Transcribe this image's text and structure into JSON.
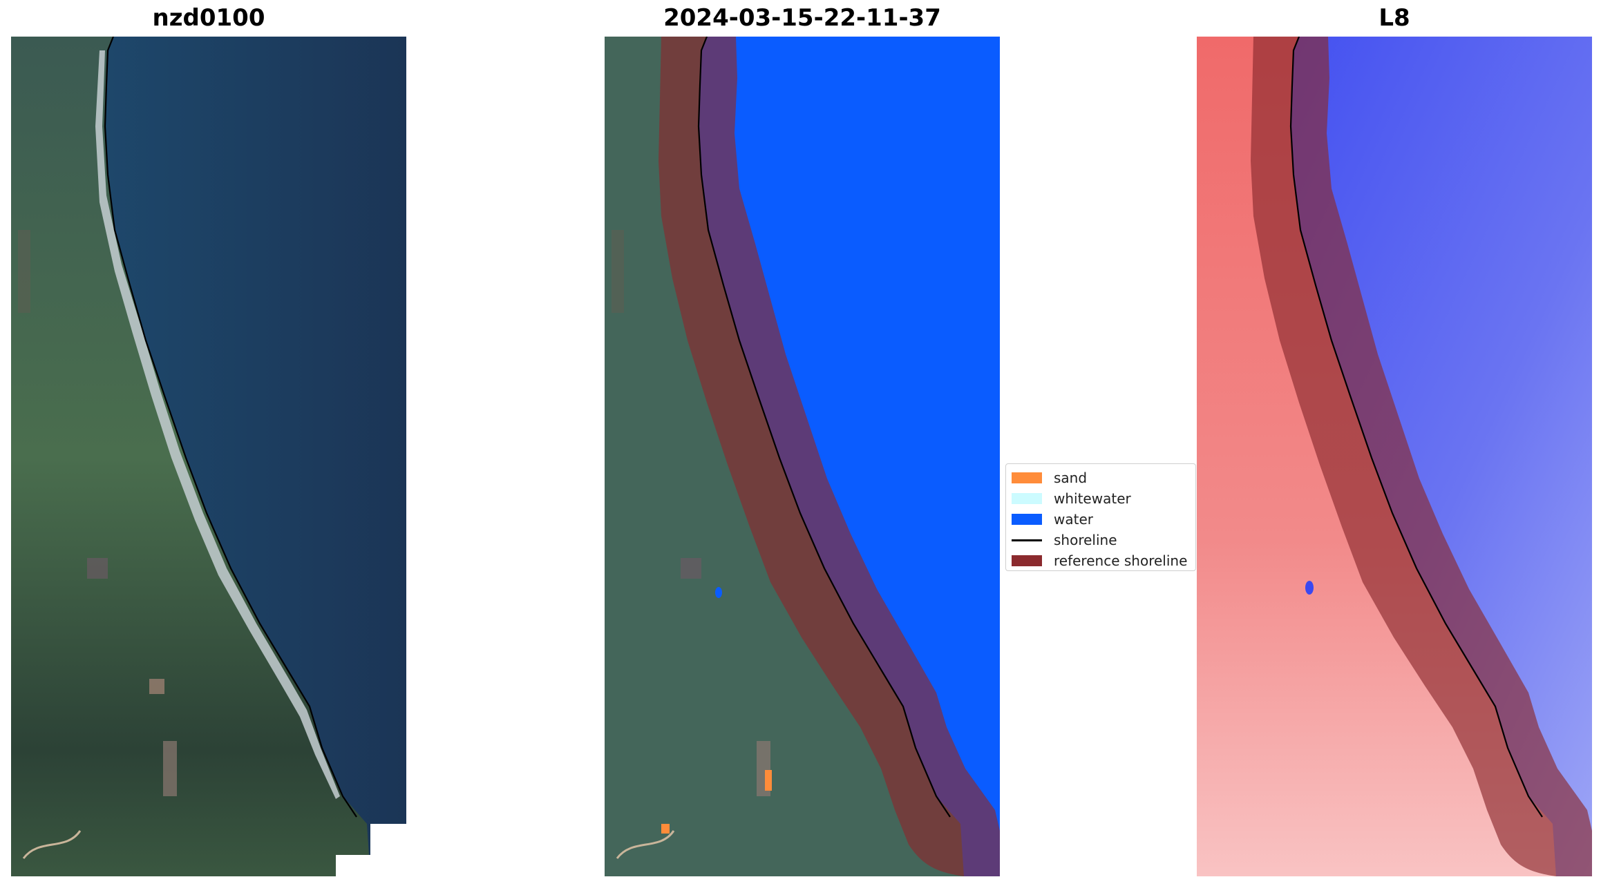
{
  "panels": [
    {
      "title": "nzd0100"
    },
    {
      "title": "2024-03-15-22-11-37"
    },
    {
      "title": "L8"
    }
  ],
  "legend": {
    "items": [
      {
        "label": "sand",
        "color": "#ff8c3a",
        "kind": "patch"
      },
      {
        "label": "whitewater",
        "color": "#ccfbff",
        "kind": "patch"
      },
      {
        "label": "water",
        "color": "#0a5cff",
        "kind": "patch"
      },
      {
        "label": "shoreline",
        "color": "#000000",
        "kind": "line"
      },
      {
        "label": "reference shoreline",
        "color": "#8b2a2e",
        "kind": "patch"
      }
    ]
  },
  "colors": {
    "ocean_rgb": "#1d3a5e",
    "land_rgb": "#3e5f4c",
    "beach": "#c9d3d6",
    "water_class": "#0a5cff",
    "ref_buffer": "#8b2a2e",
    "l8_land": "#f27a7a",
    "l8_water": "#5560f2",
    "shoreline": "#000000"
  }
}
